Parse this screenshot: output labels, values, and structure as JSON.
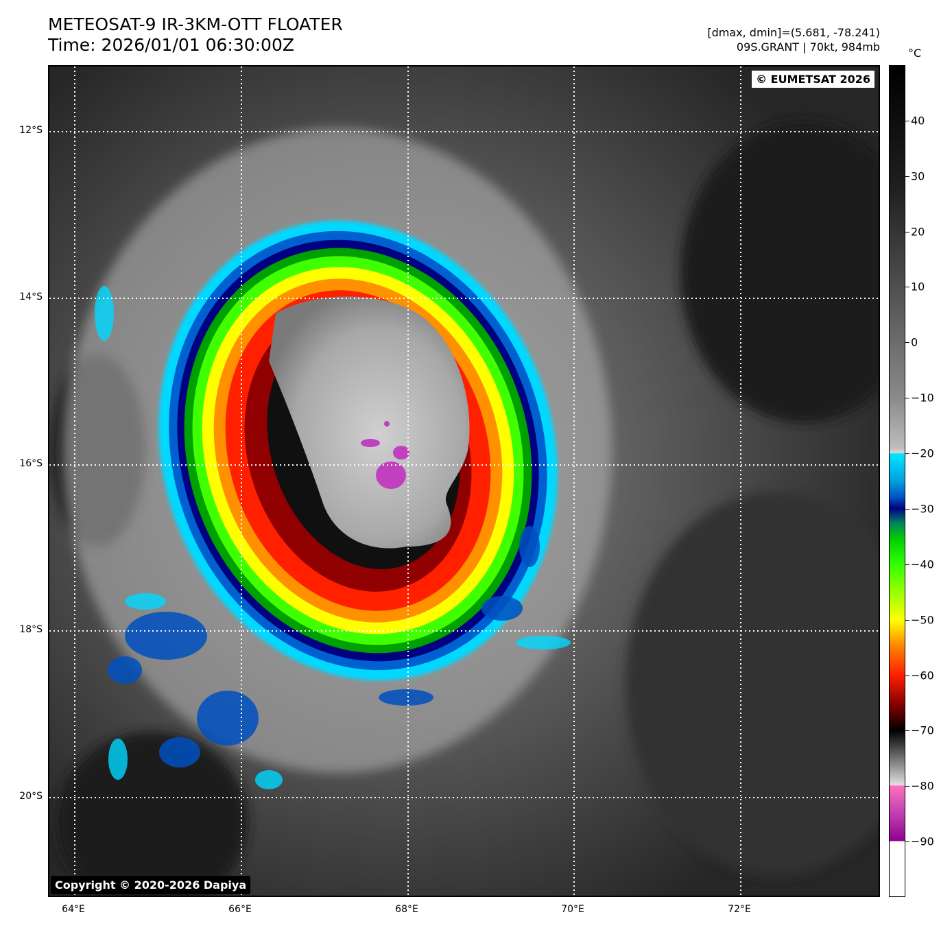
{
  "header": {
    "title_line1": "METEOSAT-9 IR-3KM-OTT FLOATER",
    "title_line2": "Time: 2026/01/01 06:30:00Z",
    "meta_line1": "[dmax, dmin]=(5.681, -78.241)",
    "meta_line2": "09S.GRANT | 70kt, 984mb"
  },
  "map": {
    "watermark": "© EUMETSAT 2026",
    "copyright": "Copyright © 2020-2026 Dapiya",
    "lat_labels": [
      "12°S",
      "14°S",
      "16°S",
      "18°S",
      "20°S"
    ],
    "lon_labels": [
      "64°E",
      "66°E",
      "68°E",
      "70°E",
      "72°E"
    ],
    "lat_range": [
      -11.2,
      -21.2
    ],
    "lon_range": [
      63.7,
      73.7
    ],
    "storm_center": {
      "lat": -16.1,
      "lon": 67.8
    },
    "grid": "dotted white"
  },
  "colorbar": {
    "unit": "°C",
    "ticks": [
      "40",
      "30",
      "20",
      "10",
      "0",
      "−10",
      "−20",
      "−30",
      "−40",
      "−50",
      "−60",
      "−70",
      "−80",
      "−90"
    ],
    "range": [
      50,
      -100
    ]
  }
}
